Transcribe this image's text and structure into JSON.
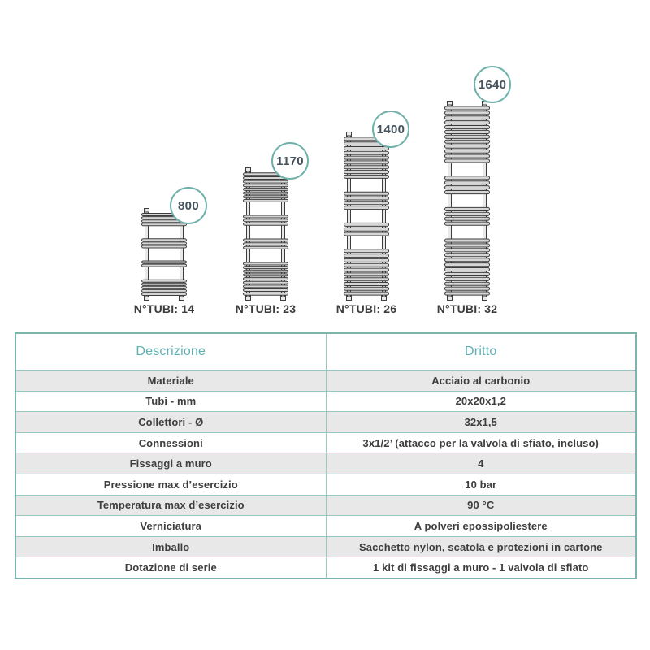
{
  "colors": {
    "teal_border": "#7cb5ae",
    "teal_line": "#98c6c0",
    "teal_text": "#5fb0b4",
    "badge_ring": "#6fb1aa",
    "badge_text": "#43525d",
    "row_gray": "#e8e8e8",
    "cell_text": "#3e3e3e",
    "drawing_stroke": "#3d3d3d",
    "tube_fill": "#d6d6d6"
  },
  "figure": {
    "radiators": [
      {
        "height_mm": "800",
        "tubes_label": "N°TUBI: 14",
        "tube_groups": [
          4,
          3,
          2,
          5
        ]
      },
      {
        "height_mm": "1170",
        "tubes_label": "N°TUBI: 23",
        "tube_groups": [
          8,
          3,
          3,
          9
        ]
      },
      {
        "height_mm": "1400",
        "tubes_label": "N°TUBI: 26",
        "tube_groups": [
          9,
          4,
          3,
          10
        ]
      },
      {
        "height_mm": "1640",
        "tubes_label": "N°TUBI: 32",
        "tube_groups": [
          12,
          4,
          4,
          12
        ]
      }
    ]
  },
  "table": {
    "header": {
      "col1": "Descrizione",
      "col2": "Dritto"
    },
    "rows": [
      {
        "label": "Materiale",
        "value": "Acciaio al carbonio"
      },
      {
        "label": "Tubi - mm",
        "value": "20x20x1,2"
      },
      {
        "label": "Collettori - Ø",
        "value": "32x1,5"
      },
      {
        "label": "Connessioni",
        "value": "3x1/2’ (attacco per la valvola di sfiato, incluso)"
      },
      {
        "label": "Fissaggi a muro",
        "value": "4"
      },
      {
        "label": "Pressione max d’esercizio",
        "value": "10 bar"
      },
      {
        "label": "Temperatura max d’esercizio",
        "value": "90 °C"
      },
      {
        "label": "Verniciatura",
        "value": "A polveri epossipoliestere"
      },
      {
        "label": "Imballo",
        "value": "Sacchetto nylon, scatola e protezioni in cartone"
      },
      {
        "label": "Dotazione di serie",
        "value": "1 kit di fissaggi a muro - 1 valvola di sfiato"
      }
    ]
  }
}
